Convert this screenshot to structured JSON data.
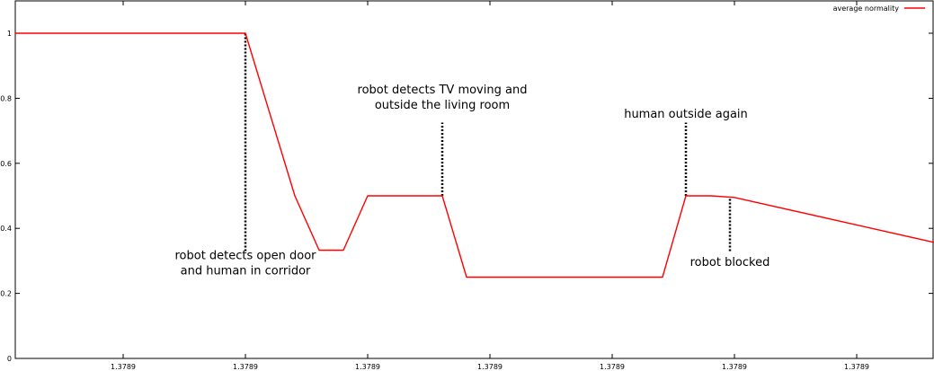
{
  "chart_data": {
    "type": "line",
    "title": "",
    "xlabel": "",
    "ylabel": "",
    "ylim": [
      0,
      1.05
    ],
    "yticks": [
      0,
      0.2,
      0.4,
      0.6,
      0.8,
      1
    ],
    "ytick_labels": [
      "0",
      "0.2",
      "0.4",
      "0.6",
      "0.8",
      "1"
    ],
    "xlim": [
      0,
      1022
    ],
    "xticks": [
      120,
      256,
      392,
      528,
      664,
      800,
      936
    ],
    "xtick_labels": [
      "1.3789",
      "1.3789",
      "1.3789",
      "1.3789",
      "1.3789",
      "1.3789",
      "1.3789"
    ],
    "grid": false,
    "legend": {
      "position": "top-right",
      "entries": [
        {
          "label": "average normality",
          "color": "#ff0000"
        }
      ]
    },
    "series": [
      {
        "name": "average normality",
        "color": "#ff0000",
        "x": [
          0,
          256,
          311,
          338,
          365,
          392,
          475,
          502,
          720,
          746,
          774,
          800,
          1022
        ],
        "y": [
          1.0,
          1.0,
          0.5,
          0.333,
          0.333,
          0.5,
          0.5,
          0.25,
          0.25,
          0.5,
          0.5,
          0.495,
          0.357
        ]
      }
    ],
    "annotations": [
      {
        "lines": [
          "robot detects open door",
          "and human in corridor"
        ],
        "x": 256,
        "y_from": 0.33,
        "y_to": 1.0,
        "text_y": 0.305,
        "anchor": "middle",
        "text_x": 256
      },
      {
        "lines": [
          "robot detects TV moving and",
          "outside the living room"
        ],
        "x": 475,
        "y_from": 0.5,
        "y_to": 0.725,
        "text_y": 0.815,
        "anchor": "middle",
        "text_x": 475
      },
      {
        "lines": [
          "human outside again"
        ],
        "x": 746,
        "y_from": 0.5,
        "y_to": 0.725,
        "text_y": 0.74,
        "anchor": "middle",
        "text_x": 746
      },
      {
        "lines": [
          "robot blocked"
        ],
        "x": 795,
        "y_from": 0.33,
        "y_to": 0.495,
        "text_y": 0.285,
        "anchor": "middle",
        "text_x": 795
      }
    ]
  }
}
